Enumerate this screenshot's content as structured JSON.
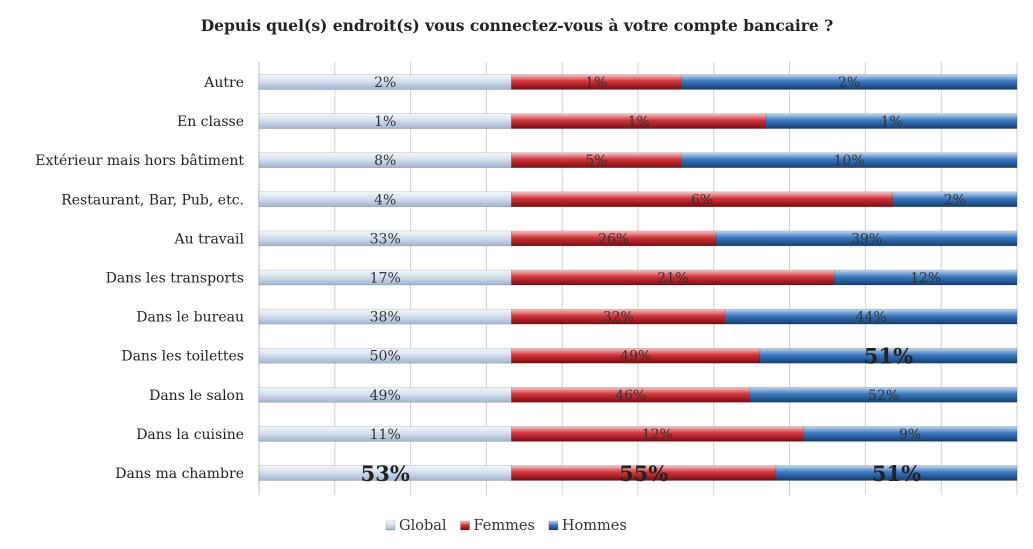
{
  "chart_data": {
    "type": "bar",
    "orientation": "horizontal",
    "stacked": true,
    "title": "Depuis quel(s) endroit(s) vous connectez-vous à votre compte bancaire ?",
    "categories": [
      "Autre",
      "En classe",
      "Extérieur mais hors bâtiment",
      "Restaurant, Bar, Pub, etc.",
      "Au travail",
      "Dans les transports",
      "Dans le bureau",
      "Dans les toilettes",
      "Dans le salon",
      "Dans la cuisine",
      "Dans ma chambre"
    ],
    "series": [
      {
        "name": "Global",
        "color": "#c9d7ea",
        "values": [
          "2%",
          "1%",
          "8%",
          "4%",
          "33%",
          "17%",
          "38%",
          "50%",
          "49%",
          "11%",
          "53%"
        ]
      },
      {
        "name": "Femmes",
        "color": "#c0272d",
        "values": [
          "1%",
          "1%",
          "5%",
          "6%",
          "26%",
          "21%",
          "32%",
          "49%",
          "46%",
          "12%",
          "55%"
        ]
      },
      {
        "name": "Hommes",
        "color": "#2e6ab0",
        "values": [
          "2%",
          "1%",
          "10%",
          "2%",
          "39%",
          "12%",
          "44%",
          "51%",
          "52%",
          "9%",
          "51%"
        ]
      }
    ],
    "segment_share": {
      "Global": [
        0.333,
        0.333,
        0.333,
        0.333,
        0.333,
        0.333,
        0.333,
        0.333,
        0.333,
        0.333,
        0.333
      ],
      "Femmes": [
        0.224,
        0.336,
        0.224,
        0.503,
        0.27,
        0.426,
        0.282,
        0.328,
        0.315,
        0.385,
        0.349
      ],
      "Hommes": [
        0.443,
        0.331,
        0.443,
        0.164,
        0.397,
        0.241,
        0.385,
        0.339,
        0.352,
        0.282,
        0.318
      ]
    },
    "emphasized": [
      {
        "series": "Hommes",
        "category": "Dans les toilettes"
      },
      {
        "series": "Global",
        "category": "Dans ma chambre"
      },
      {
        "series": "Femmes",
        "category": "Dans ma chambre"
      },
      {
        "series": "Hommes",
        "category": "Dans ma chambre"
      }
    ],
    "xlim": [
      0,
      1
    ],
    "grid": true,
    "legend_position": "bottom"
  }
}
